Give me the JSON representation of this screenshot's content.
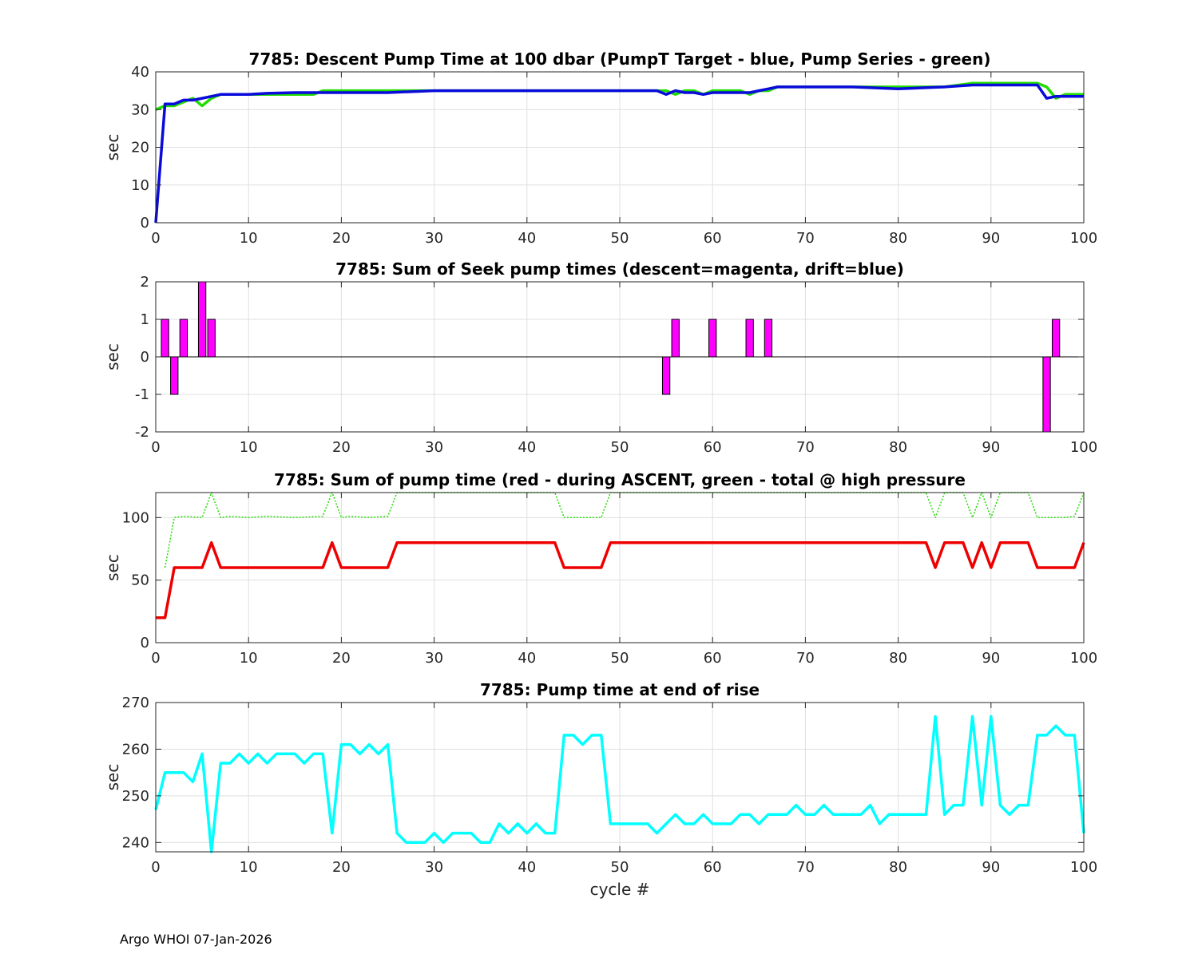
{
  "footer": "Argo WHOI 07-Jan-2026",
  "chart_data": [
    {
      "type": "line",
      "title": "7785: Descent Pump Time at 100 dbar (PumpT Target - blue, Pump Series - green)",
      "xlabel": "",
      "ylabel": "sec",
      "xlim": [
        0,
        100
      ],
      "ylim": [
        0,
        40
      ],
      "xticks": [
        0,
        10,
        20,
        30,
        40,
        50,
        60,
        70,
        80,
        90,
        100
      ],
      "yticks": [
        0,
        10,
        20,
        30,
        40
      ],
      "series": [
        {
          "name": "Pump Series",
          "color": "#22dd00",
          "width": 3.5,
          "x": [
            0,
            1,
            2,
            3,
            4,
            5,
            6,
            7,
            8,
            9,
            10,
            12,
            14,
            16,
            17,
            18,
            20,
            25,
            30,
            35,
            40,
            45,
            50,
            54,
            55,
            56,
            57,
            58,
            59,
            60,
            61,
            62,
            63,
            64,
            65,
            66,
            67,
            70,
            80,
            85,
            88,
            90,
            94,
            95,
            96,
            97,
            98,
            100
          ],
          "y": [
            30,
            31,
            31,
            32,
            33,
            31,
            33,
            34,
            34,
            34,
            34,
            34,
            34,
            34,
            34,
            35,
            35,
            35,
            35,
            35,
            35,
            35,
            35,
            35,
            35,
            34,
            35,
            35,
            34,
            35,
            35,
            35,
            35,
            34,
            35,
            35,
            36,
            36,
            36,
            36,
            37,
            37,
            37,
            37,
            36,
            33,
            34,
            34
          ]
        },
        {
          "name": "PumpT Target",
          "color": "#0a0adc",
          "width": 3.5,
          "x": [
            0,
            1,
            2,
            3,
            4,
            5,
            6,
            7,
            8,
            10,
            12,
            15,
            20,
            25,
            30,
            35,
            40,
            45,
            50,
            54,
            55,
            56,
            57,
            58,
            59,
            60,
            62,
            64,
            65,
            66,
            67,
            70,
            75,
            80,
            85,
            88,
            90,
            95,
            96,
            97,
            100
          ],
          "y": [
            0,
            31.5,
            31.5,
            32.5,
            32.5,
            33,
            33.5,
            34,
            34,
            34,
            34.3,
            34.5,
            34.5,
            34.5,
            35,
            35,
            35,
            35,
            35,
            35,
            34,
            35,
            34.5,
            34.5,
            34,
            34.5,
            34.5,
            34.5,
            35,
            35.5,
            36,
            36,
            36,
            35.5,
            36,
            36.5,
            36.5,
            36.5,
            33,
            33.5,
            33.5
          ]
        }
      ]
    },
    {
      "type": "bar",
      "title": "7785: Sum of Seek pump times (descent=magenta, drift=blue)",
      "xlabel": "",
      "ylabel": "sec",
      "xlim": [
        0,
        100
      ],
      "ylim": [
        -2,
        2
      ],
      "xticks": [
        0,
        10,
        20,
        30,
        40,
        50,
        60,
        70,
        80,
        90,
        100
      ],
      "yticks": [
        -2,
        -1,
        0,
        1,
        2
      ],
      "bar_color": "#ff00ff",
      "x": [
        1,
        2,
        3,
        5,
        6,
        55,
        56,
        60,
        64,
        66,
        96,
        97
      ],
      "values": [
        1,
        -1,
        1,
        2,
        1,
        -1,
        1,
        1,
        1,
        1,
        -2,
        1
      ]
    },
    {
      "type": "line",
      "title": "7785: Sum of pump time (red - during ASCENT, green - total @ high pressure",
      "xlabel": "",
      "ylabel": "sec",
      "xlim": [
        0,
        100
      ],
      "ylim": [
        0,
        120
      ],
      "xticks": [
        0,
        10,
        20,
        30,
        40,
        50,
        60,
        70,
        80,
        90,
        100
      ],
      "yticks": [
        0,
        50,
        100
      ],
      "series": [
        {
          "name": "total @ high pressure",
          "color": "#22dd00",
          "width": 1.5,
          "dash": "2,2",
          "x": [
            1,
            2,
            3,
            5,
            6,
            7,
            8,
            10,
            12,
            15,
            18,
            19,
            20,
            21,
            23,
            25,
            26,
            27,
            30,
            35,
            40,
            43,
            44,
            48,
            49,
            50,
            60,
            70,
            80,
            83,
            84,
            85,
            86,
            87,
            88,
            89,
            90,
            91,
            92,
            93,
            94,
            95,
            98,
            99,
            100
          ],
          "y": [
            60,
            100,
            101,
            100,
            120,
            100,
            101,
            100,
            101,
            100,
            101,
            120,
            100,
            101,
            100,
            101,
            120,
            120,
            120,
            120,
            120,
            120,
            100,
            100,
            120,
            120,
            120,
            120,
            120,
            120,
            100,
            120,
            120,
            120,
            100,
            120,
            100,
            120,
            120,
            120,
            120,
            100,
            100,
            101,
            120
          ]
        },
        {
          "name": "during ASCENT",
          "color": "#ee0000",
          "width": 3.5,
          "x": [
            0,
            1,
            2,
            3,
            4,
            5,
            6,
            7,
            8,
            10,
            18,
            19,
            20,
            25,
            26,
            30,
            40,
            43,
            44,
            48,
            49,
            50,
            60,
            70,
            80,
            83,
            84,
            85,
            86,
            87,
            88,
            89,
            90,
            91,
            92,
            93,
            94,
            95,
            98,
            99,
            100
          ],
          "y": [
            20,
            20,
            60,
            60,
            60,
            60,
            80,
            60,
            60,
            60,
            60,
            80,
            60,
            60,
            80,
            80,
            80,
            80,
            60,
            60,
            80,
            80,
            80,
            80,
            80,
            80,
            60,
            80,
            80,
            80,
            60,
            80,
            60,
            80,
            80,
            80,
            80,
            60,
            60,
            60,
            80
          ]
        }
      ]
    },
    {
      "type": "line",
      "title": "7785: Pump time at end of rise",
      "xlabel": "cycle #",
      "ylabel": "sec",
      "xlim": [
        0,
        100
      ],
      "ylim": [
        238,
        270
      ],
      "xticks": [
        0,
        10,
        20,
        30,
        40,
        50,
        60,
        70,
        80,
        90,
        100
      ],
      "yticks": [
        240,
        250,
        260,
        270
      ],
      "series": [
        {
          "name": "end of rise",
          "color": "#00ffff",
          "width": 3.5,
          "x": [
            0,
            1,
            2,
            3,
            4,
            5,
            6,
            7,
            8,
            9,
            10,
            11,
            12,
            13,
            14,
            15,
            16,
            17,
            18,
            19,
            20,
            21,
            22,
            23,
            24,
            25,
            26,
            27,
            28,
            29,
            30,
            31,
            32,
            33,
            34,
            35,
            36,
            37,
            38,
            39,
            40,
            41,
            42,
            43,
            44,
            45,
            46,
            47,
            48,
            49,
            50,
            51,
            52,
            53,
            54,
            55,
            56,
            57,
            58,
            59,
            60,
            61,
            62,
            63,
            64,
            65,
            66,
            67,
            68,
            69,
            70,
            71,
            72,
            73,
            74,
            75,
            76,
            77,
            78,
            79,
            80,
            81,
            82,
            83,
            84,
            85,
            86,
            87,
            88,
            89,
            90,
            91,
            92,
            93,
            94,
            95,
            96,
            97,
            98,
            99,
            100
          ],
          "y": [
            247,
            255,
            255,
            255,
            253,
            259,
            238,
            257,
            257,
            259,
            257,
            259,
            257,
            259,
            259,
            259,
            257,
            259,
            259,
            242,
            261,
            261,
            259,
            261,
            259,
            261,
            242,
            240,
            240,
            240,
            242,
            240,
            242,
            242,
            242,
            240,
            240,
            244,
            242,
            244,
            242,
            244,
            242,
            242,
            263,
            263,
            261,
            263,
            263,
            244,
            244,
            244,
            244,
            244,
            242,
            244,
            246,
            244,
            244,
            246,
            244,
            244,
            244,
            246,
            246,
            244,
            246,
            246,
            246,
            248,
            246,
            246,
            248,
            246,
            246,
            246,
            246,
            248,
            244,
            246,
            246,
            246,
            246,
            246,
            267,
            246,
            248,
            248,
            267,
            248,
            267,
            248,
            246,
            248,
            248,
            263,
            263,
            265,
            263,
            263,
            242
          ]
        }
      ]
    }
  ]
}
